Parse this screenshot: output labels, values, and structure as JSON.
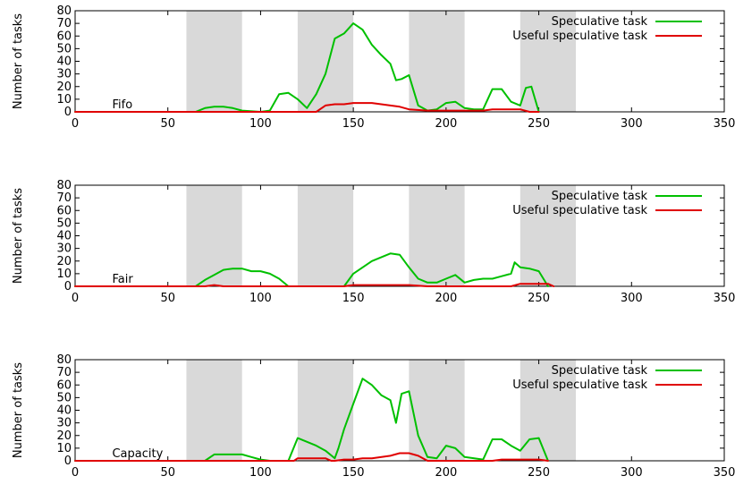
{
  "chart_data": [
    {
      "type": "line",
      "title": "",
      "panel_label": "Fifo",
      "ylabel": "Number of tasks",
      "xlabel": "",
      "xlim": [
        0,
        350
      ],
      "ylim": [
        0,
        80
      ],
      "xticks": [
        "0",
        "50",
        "100",
        "150",
        "200",
        "250",
        "300",
        "350"
      ],
      "yticks": [
        "0",
        "10",
        "20",
        "30",
        "40",
        "50",
        "60",
        "70",
        "80"
      ],
      "grid": false,
      "legend_position": "top-right",
      "shaded_bands": [
        [
          60,
          90
        ],
        [
          120,
          150
        ],
        [
          180,
          210
        ],
        [
          240,
          270
        ]
      ],
      "band_color": "#d9d9d9",
      "series": [
        {
          "name": "Speculative task",
          "color": "#00c000",
          "x": [
            0,
            65,
            70,
            75,
            80,
            85,
            90,
            100,
            105,
            110,
            115,
            120,
            125,
            130,
            135,
            140,
            145,
            150,
            155,
            160,
            165,
            170,
            173,
            176,
            180,
            185,
            190,
            195,
            200,
            205,
            210,
            215,
            220,
            225,
            230,
            235,
            240,
            243,
            246,
            250
          ],
          "y": [
            0,
            0,
            3,
            4,
            4,
            3,
            1,
            0,
            1,
            14,
            15,
            10,
            3,
            14,
            30,
            58,
            62,
            70,
            65,
            53,
            45,
            38,
            25,
            26,
            29,
            5,
            1,
            2,
            7,
            8,
            3,
            2,
            2,
            18,
            18,
            8,
            5,
            19,
            20,
            0
          ]
        },
        {
          "name": "Useful speculative task",
          "color": "#e00000",
          "x": [
            0,
            130,
            135,
            140,
            145,
            150,
            155,
            160,
            165,
            170,
            175,
            180,
            190,
            200,
            220,
            225,
            230,
            240,
            245,
            250
          ],
          "y": [
            0,
            0,
            5,
            6,
            6,
            7,
            7,
            7,
            6,
            5,
            4,
            2,
            1,
            1,
            1,
            2,
            2,
            2,
            0,
            0
          ]
        }
      ]
    },
    {
      "type": "line",
      "title": "",
      "panel_label": "Fair",
      "ylabel": "Number of tasks",
      "xlabel": "",
      "xlim": [
        0,
        350
      ],
      "ylim": [
        0,
        80
      ],
      "xticks": [
        "0",
        "50",
        "100",
        "150",
        "200",
        "250",
        "300",
        "350"
      ],
      "yticks": [
        "0",
        "10",
        "20",
        "30",
        "40",
        "50",
        "60",
        "70",
        "80"
      ],
      "grid": false,
      "legend_position": "top-right",
      "shaded_bands": [
        [
          60,
          90
        ],
        [
          120,
          150
        ],
        [
          180,
          210
        ],
        [
          240,
          270
        ]
      ],
      "band_color": "#d9d9d9",
      "series": [
        {
          "name": "Speculative task",
          "color": "#00c000",
          "x": [
            0,
            65,
            70,
            75,
            80,
            85,
            90,
            95,
            100,
            105,
            110,
            115,
            145,
            150,
            160,
            170,
            175,
            180,
            185,
            190,
            195,
            200,
            205,
            210,
            215,
            220,
            225,
            230,
            235,
            237,
            240,
            245,
            250,
            255
          ],
          "y": [
            0,
            0,
            5,
            9,
            13,
            14,
            14,
            12,
            12,
            10,
            6,
            0,
            0,
            10,
            20,
            26,
            25,
            15,
            6,
            3,
            3,
            6,
            9,
            3,
            5,
            6,
            6,
            8,
            10,
            19,
            15,
            14,
            12,
            0
          ]
        },
        {
          "name": "Useful speculative task",
          "color": "#e00000",
          "x": [
            0,
            70,
            75,
            80,
            145,
            150,
            170,
            180,
            190,
            235,
            240,
            250,
            255,
            258
          ],
          "y": [
            0,
            0,
            1,
            0,
            0,
            1,
            1,
            1,
            0,
            0,
            2,
            2,
            2,
            0
          ]
        }
      ]
    },
    {
      "type": "line",
      "title": "",
      "panel_label": "Capacity",
      "ylabel": "Number of tasks",
      "xlabel": "",
      "xlim": [
        0,
        350
      ],
      "ylim": [
        0,
        80
      ],
      "xticks": [
        "0",
        "50",
        "100",
        "150",
        "200",
        "250",
        "300",
        "350"
      ],
      "yticks": [
        "0",
        "10",
        "20",
        "30",
        "40",
        "50",
        "60",
        "70",
        "80"
      ],
      "grid": false,
      "legend_position": "top-right",
      "shaded_bands": [
        [
          60,
          90
        ],
        [
          120,
          150
        ],
        [
          180,
          210
        ],
        [
          240,
          270
        ]
      ],
      "band_color": "#d9d9d9",
      "series": [
        {
          "name": "Speculative task",
          "color": "#00c000",
          "x": [
            0,
            70,
            75,
            80,
            90,
            95,
            100,
            105,
            115,
            120,
            125,
            130,
            135,
            140,
            142,
            145,
            150,
            155,
            160,
            165,
            170,
            173,
            176,
            180,
            185,
            190,
            195,
            200,
            205,
            210,
            220,
            225,
            230,
            235,
            240,
            245,
            250,
            255
          ],
          "y": [
            0,
            0,
            5,
            5,
            5,
            3,
            1,
            0,
            0,
            18,
            15,
            12,
            8,
            2,
            10,
            25,
            45,
            65,
            60,
            52,
            48,
            30,
            53,
            55,
            20,
            3,
            2,
            12,
            10,
            3,
            1,
            17,
            17,
            12,
            8,
            17,
            18,
            0
          ]
        },
        {
          "name": "Useful speculative task",
          "color": "#e00000",
          "x": [
            0,
            118,
            120,
            135,
            138,
            140,
            145,
            150,
            155,
            160,
            170,
            175,
            180,
            185,
            190,
            225,
            230,
            240,
            250,
            255
          ],
          "y": [
            0,
            0,
            2,
            2,
            0,
            0,
            1,
            1,
            2,
            2,
            4,
            6,
            6,
            4,
            0,
            0,
            1,
            1,
            1,
            0
          ]
        }
      ]
    }
  ]
}
